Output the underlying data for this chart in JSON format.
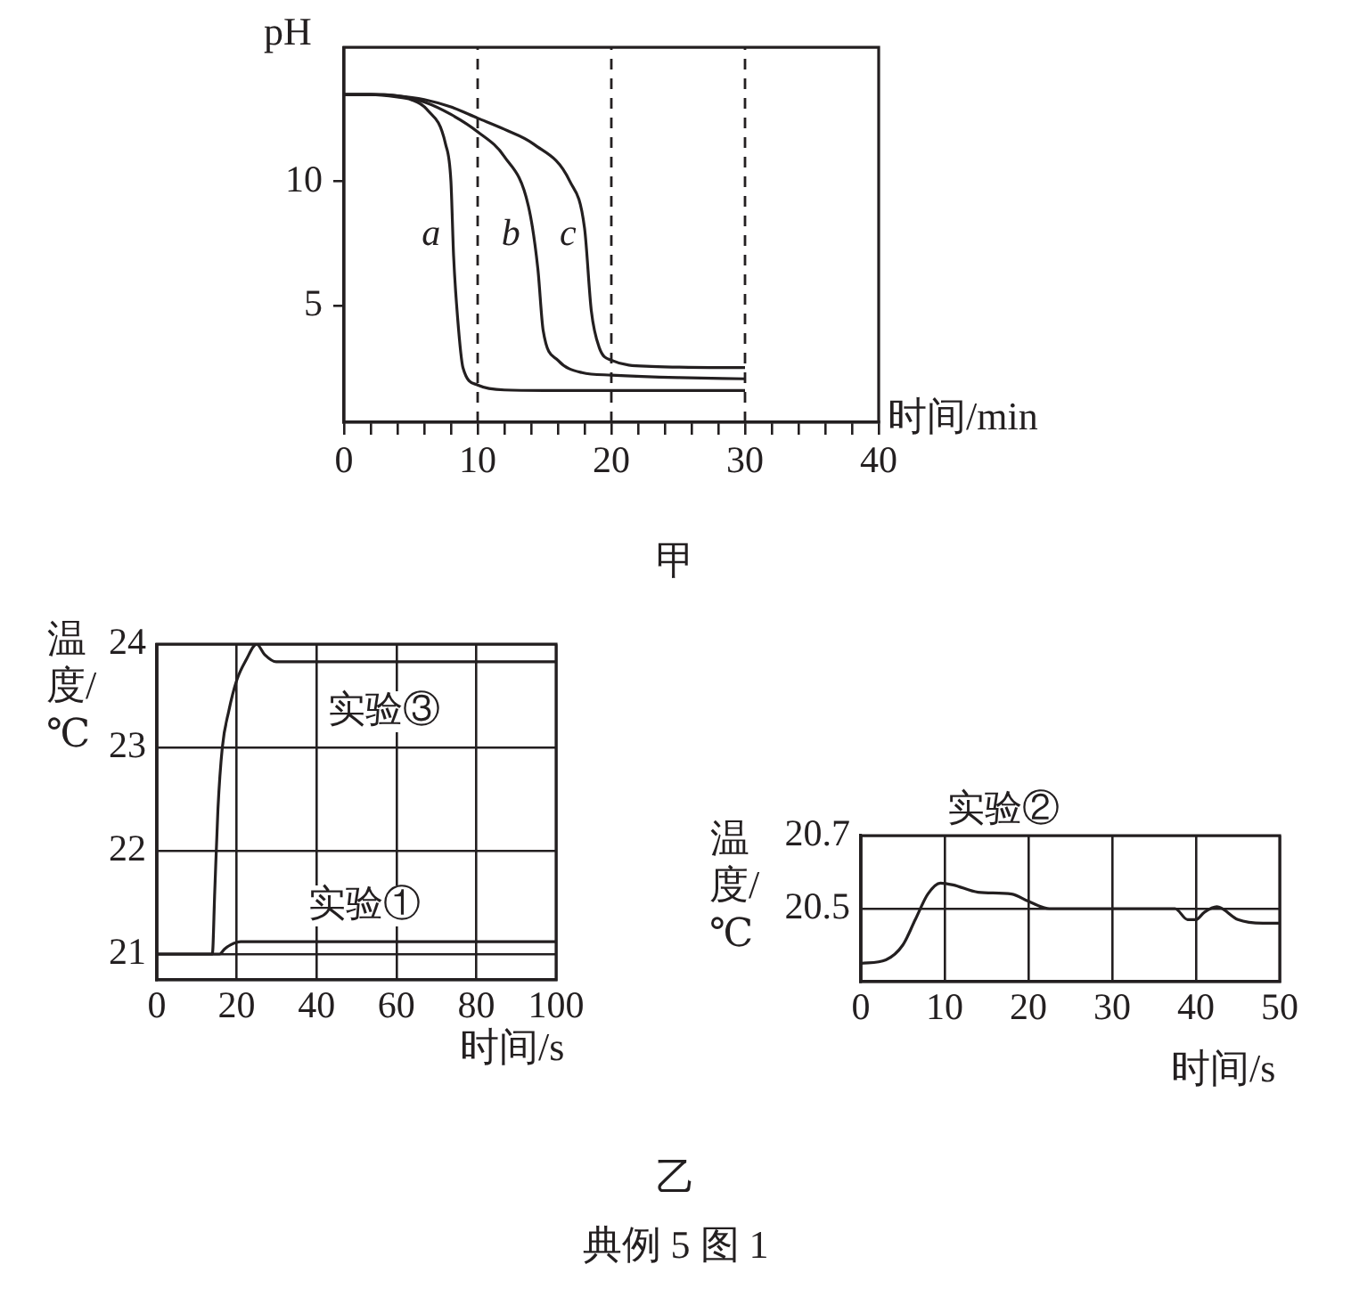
{
  "chart_data": [
    {
      "type": "line",
      "xlabel": "时间/min",
      "ylabel": "pH",
      "xlim": [
        0,
        40
      ],
      "ylim": [
        0.3,
        15.4
      ],
      "xticks": [
        0,
        {
          "value": 2,
          "label": null
        },
        {
          "value": 4,
          "label": null
        },
        {
          "value": 6,
          "label": null
        },
        {
          "value": 8,
          "label": null
        },
        10,
        {
          "value": 12,
          "label": null
        },
        {
          "value": 14,
          "label": null
        },
        {
          "value": 16,
          "label": null
        },
        {
          "value": 18,
          "label": null
        },
        20,
        {
          "value": 22,
          "label": null
        },
        {
          "value": 24,
          "label": null
        },
        {
          "value": 26,
          "label": null
        },
        {
          "value": 28,
          "label": null
        },
        30,
        {
          "value": 32,
          "label": null
        },
        {
          "value": 34,
          "label": null
        },
        {
          "value": 36,
          "label": null
        },
        {
          "value": 38,
          "label": null
        },
        40
      ],
      "yticks": [
        5,
        10
      ],
      "grid": false,
      "legend": false,
      "marker": "none",
      "ref_lines": [
        {
          "axis": "x",
          "value": 10,
          "line_style": "dashed"
        },
        {
          "axis": "x",
          "value": 20,
          "line_style": "dashed"
        },
        {
          "axis": "x",
          "value": 30,
          "line_style": "dashed"
        }
      ],
      "annotations": [
        "甲"
      ],
      "series": [
        {
          "name": "a",
          "color": "#231f20",
          "x": [
            0,
            2,
            4,
            5,
            6.2,
            7.6,
            8,
            8.2,
            8.5,
            8.9,
            10,
            12,
            15,
            20,
            30
          ],
          "values": [
            13.5,
            13.5,
            13.4,
            13.3,
            12.9,
            11.5,
            10,
            7,
            4.5,
            2.5,
            1.8,
            1.6,
            1.58,
            1.58,
            1.58
          ]
        },
        {
          "name": "b",
          "color": "#231f20",
          "x": [
            0,
            2,
            4,
            6,
            8,
            10,
            12,
            13.8,
            14.5,
            14.9,
            16,
            17.8,
            20,
            25,
            30
          ],
          "values": [
            13.5,
            13.5,
            13.45,
            13.2,
            12.7,
            12,
            11,
            9,
            6.5,
            4,
            2.8,
            2.3,
            2.2,
            2.1,
            2.05
          ]
        },
        {
          "name": "c",
          "color": "#231f20",
          "x": [
            0,
            2,
            4,
            6,
            8,
            10,
            12,
            14.2,
            16.9,
            18,
            18.5,
            19.1,
            20,
            23,
            30
          ],
          "values": [
            13.5,
            13.5,
            13.45,
            13.3,
            13,
            12.55,
            12.1,
            11.5,
            10,
            8.1,
            4.8,
            3.3,
            2.8,
            2.55,
            2.5
          ]
        }
      ]
    },
    {
      "type": "line",
      "xlabel": "时间/s",
      "ylabel": "温度/℃",
      "xlim": [
        0,
        100
      ],
      "ylim": [
        20.75,
        24
      ],
      "xticks": [
        0,
        20,
        40,
        60,
        80,
        100
      ],
      "yticks": [
        21,
        22,
        23,
        24
      ],
      "grid": true,
      "legend": false,
      "marker": "none",
      "annotations": [
        "乙",
        "典例 5 图 1"
      ],
      "series": [
        {
          "name": "实验③",
          "color": "#231f20",
          "x": [
            0,
            13.9,
            14.5,
            15.3,
            16.4,
            18,
            20,
            22.4,
            25,
            27,
            29.9,
            100
          ],
          "values": [
            21,
            21,
            21.6,
            22.4,
            23,
            23.35,
            23.65,
            23.85,
            24,
            23.9,
            23.83,
            23.83
          ]
        },
        {
          "name": "实验①",
          "color": "#231f20",
          "x": [
            0,
            15.7,
            17,
            18.5,
            21,
            100
          ],
          "values": [
            21,
            21,
            21.05,
            21.09,
            21.12,
            21.12
          ]
        }
      ]
    },
    {
      "type": "line",
      "xlabel": "时间/s",
      "ylabel": "温度/℃",
      "xlim": [
        0,
        50
      ],
      "ylim": [
        20.3,
        20.7
      ],
      "xticks": [
        0,
        10,
        20,
        30,
        40,
        50
      ],
      "yticks": [
        20.5,
        20.7
      ],
      "grid": true,
      "legend": false,
      "marker": "none",
      "series": [
        {
          "name": "实验②",
          "color": "#231f20",
          "x": [
            0,
            3,
            5,
            6.5,
            8,
            9.5,
            11,
            14,
            18,
            20,
            22.5,
            37.5,
            39,
            40,
            41,
            42.5,
            45,
            48,
            50
          ],
          "values": [
            20.35,
            20.36,
            20.4,
            20.47,
            20.54,
            20.57,
            20.565,
            20.545,
            20.54,
            20.52,
            20.5,
            20.5,
            20.47,
            20.47,
            20.49,
            20.505,
            20.47,
            20.46,
            20.46
          ]
        }
      ]
    }
  ]
}
